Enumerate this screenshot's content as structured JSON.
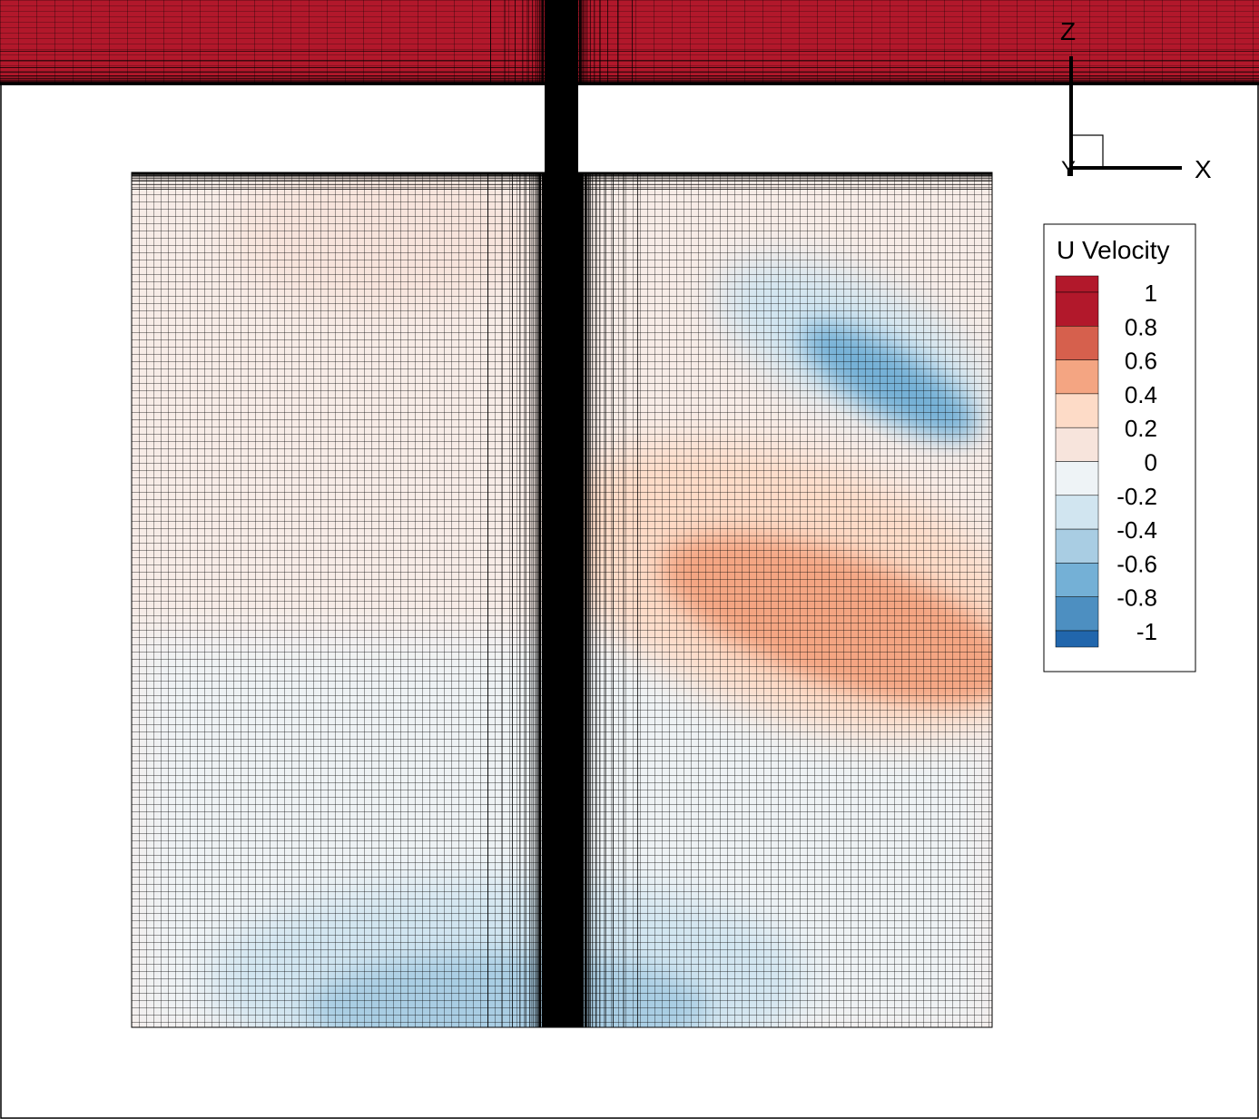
{
  "chart_data": {
    "type": "heatmap",
    "title": "",
    "variable": "U Velocity",
    "grid": true,
    "legend": {
      "title": "U Velocity",
      "placement": "right",
      "levels": [
        {
          "value": "1",
          "color": "#b2182b"
        },
        {
          "value": "0.8",
          "color": "#d6604d"
        },
        {
          "value": "0.6",
          "color": "#f4a582"
        },
        {
          "value": "0.4",
          "color": "#fddbc7"
        },
        {
          "value": "0.2",
          "color": "#f7e4dc"
        },
        {
          "value": "0",
          "color": "#eef3f6"
        },
        {
          "value": "-0.2",
          "color": "#d1e5f0"
        },
        {
          "value": "-0.4",
          "color": "#a9cde3"
        },
        {
          "value": "-0.6",
          "color": "#74b0d6"
        },
        {
          "value": "-0.8",
          "color": "#4d8fc1"
        },
        {
          "value": "-1",
          "color": "#2166ac"
        }
      ],
      "top_swatch_color": "#b2182b"
    },
    "axes": {
      "horizontal": "X",
      "vertical": "Z",
      "out_of_plane": "Y"
    },
    "regions": {
      "top_lid_velocity": 1.0,
      "cavity_field_description_values": {
        "left_upper_peak": 0.3,
        "right_upper_minimum": -0.6,
        "right_middle_peak": 0.7,
        "bottom_center_minimum": -0.45
      }
    }
  }
}
